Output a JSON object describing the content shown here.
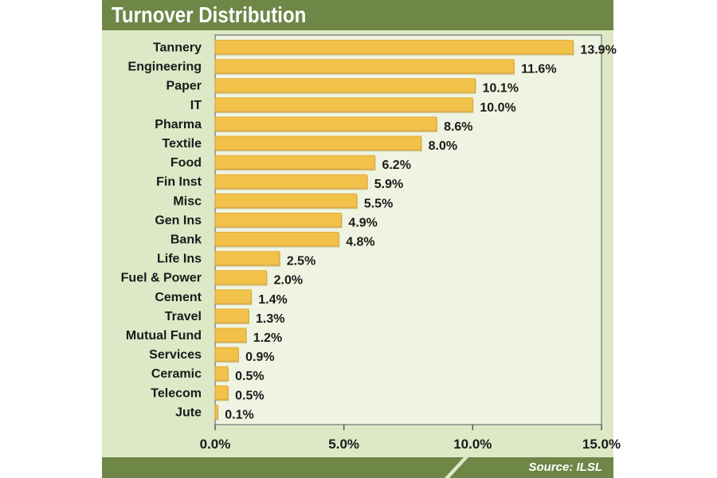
{
  "header": {
    "title": "Turnover Distribution"
  },
  "footer": {
    "source": "Source: ILSL"
  },
  "colors": {
    "bar": "#f2c14a",
    "bar_shadow": "#b98a22",
    "plot_bg": "#eef4e1",
    "frame": "#5a5a5a",
    "brand": "#6e8646"
  },
  "chart_data": {
    "type": "bar",
    "orientation": "horizontal",
    "title": "Turnover Distribution",
    "xlabel": "",
    "ylabel": "",
    "xlim": [
      0,
      15
    ],
    "xticks": [
      0,
      5,
      10,
      15
    ],
    "xtick_labels": [
      "0.0%",
      "5.0%",
      "10.0%",
      "15.0%"
    ],
    "categories": [
      "Tannery",
      "Engineering",
      "Paper",
      "IT",
      "Pharma",
      "Textile",
      "Food",
      "Fin Inst",
      "Misc",
      "Gen Ins",
      "Bank",
      "Life Ins",
      "Fuel & Power",
      "Cement",
      "Travel",
      "Mutual Fund",
      "Services",
      "Ceramic",
      "Telecom",
      "Jute"
    ],
    "values": [
      13.9,
      11.6,
      10.1,
      10.0,
      8.6,
      8.0,
      6.2,
      5.9,
      5.5,
      4.9,
      4.8,
      2.5,
      2.0,
      1.4,
      1.3,
      1.2,
      0.9,
      0.5,
      0.5,
      0.1
    ],
    "value_labels": [
      "13.9%",
      "11.6%",
      "10.1%",
      "10.0%",
      "8.6%",
      "8.0%",
      "6.2%",
      "5.9%",
      "5.5%",
      "4.9%",
      "4.8%",
      "2.5%",
      "2.0%",
      "1.4%",
      "1.3%",
      "1.2%",
      "0.9%",
      "0.5%",
      "0.5%",
      "0.1%"
    ],
    "source": "Source: ILSL"
  }
}
